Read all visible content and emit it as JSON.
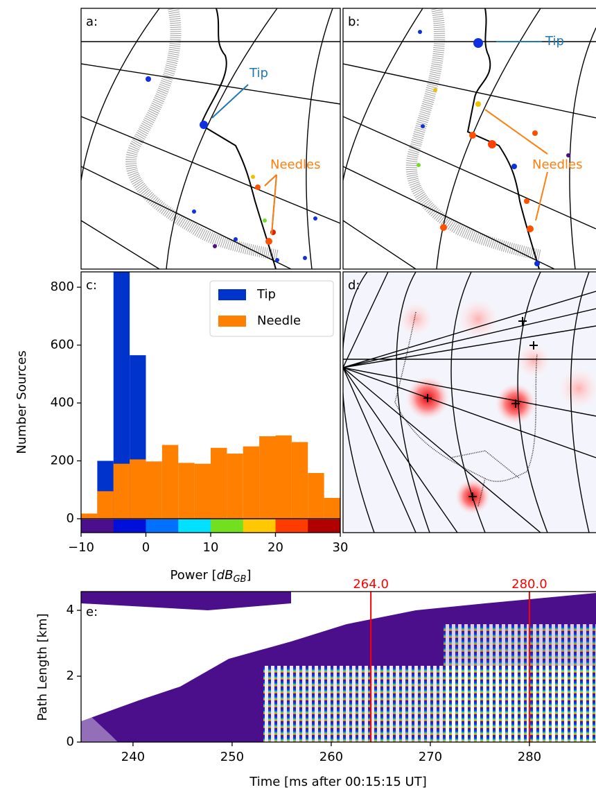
{
  "chart_data": [
    {
      "type": "map",
      "panel_label": "a:",
      "annotations": [
        {
          "text": "Tip",
          "color": "#1f77b4"
        },
        {
          "text": "Needles",
          "color": "#ff7f0e"
        }
      ]
    },
    {
      "type": "map",
      "panel_label": "b:",
      "annotations": [
        {
          "text": "Tip",
          "color": "#1f77b4"
        },
        {
          "text": "Needles",
          "color": "#ff7f0e"
        }
      ]
    },
    {
      "type": "histogram",
      "panel_label": "c:",
      "ylabel": "Number Sources",
      "xlabel": {
        "text": "Power [",
        "unit": "dB",
        "subscript": "GB",
        "close": "]"
      },
      "bins": [
        -10,
        -7.5,
        -5,
        -2.5,
        0,
        2.5,
        5,
        7.5,
        10,
        12.5,
        15,
        17.5,
        20,
        22.5,
        25,
        27.5,
        30
      ],
      "series": [
        {
          "name": "Tip",
          "color": "#0033cc",
          "values": [
            0,
            200,
            900,
            565,
            0,
            0,
            0,
            0,
            0,
            0,
            0,
            0,
            0,
            0,
            0,
            0
          ]
        },
        {
          "name": "Needle",
          "color": "#ff8000",
          "values": [
            18,
            95,
            190,
            205,
            198,
            255,
            193,
            190,
            245,
            225,
            250,
            285,
            288,
            265,
            158,
            72
          ]
        }
      ],
      "xlim": [
        -10,
        30
      ],
      "ylim": [
        -48,
        853
      ],
      "xticks": [
        {
          "value": -10,
          "label": "−10"
        },
        0,
        10,
        20,
        30
      ],
      "yticks": [
        0,
        200,
        400,
        600,
        800
      ],
      "legend": "upper right",
      "colorbar_colors": [
        "#4b0f8c",
        "#0010d8",
        "#0070ff",
        "#00e0ff",
        "#70e020",
        "#ffc800",
        "#ff3c00",
        "#b00000"
      ]
    },
    {
      "type": "image",
      "panel_label": "d:"
    },
    {
      "type": "heatmap",
      "panel_label": "e:",
      "ylabel": "Path Length [km]",
      "xlabel": "Time [ms after 00:15:15 UT]",
      "xlim": [
        234.76,
        286.7
      ],
      "ylim": [
        0,
        4.57
      ],
      "xticks": [
        240,
        250,
        260,
        270,
        280
      ],
      "yticks": [
        0,
        2,
        4
      ],
      "markers": [
        {
          "value": 264,
          "label": "264.0",
          "color": "#ff0000"
        },
        {
          "value": 280,
          "label": "280.0",
          "color": "#ff0000"
        }
      ]
    }
  ]
}
